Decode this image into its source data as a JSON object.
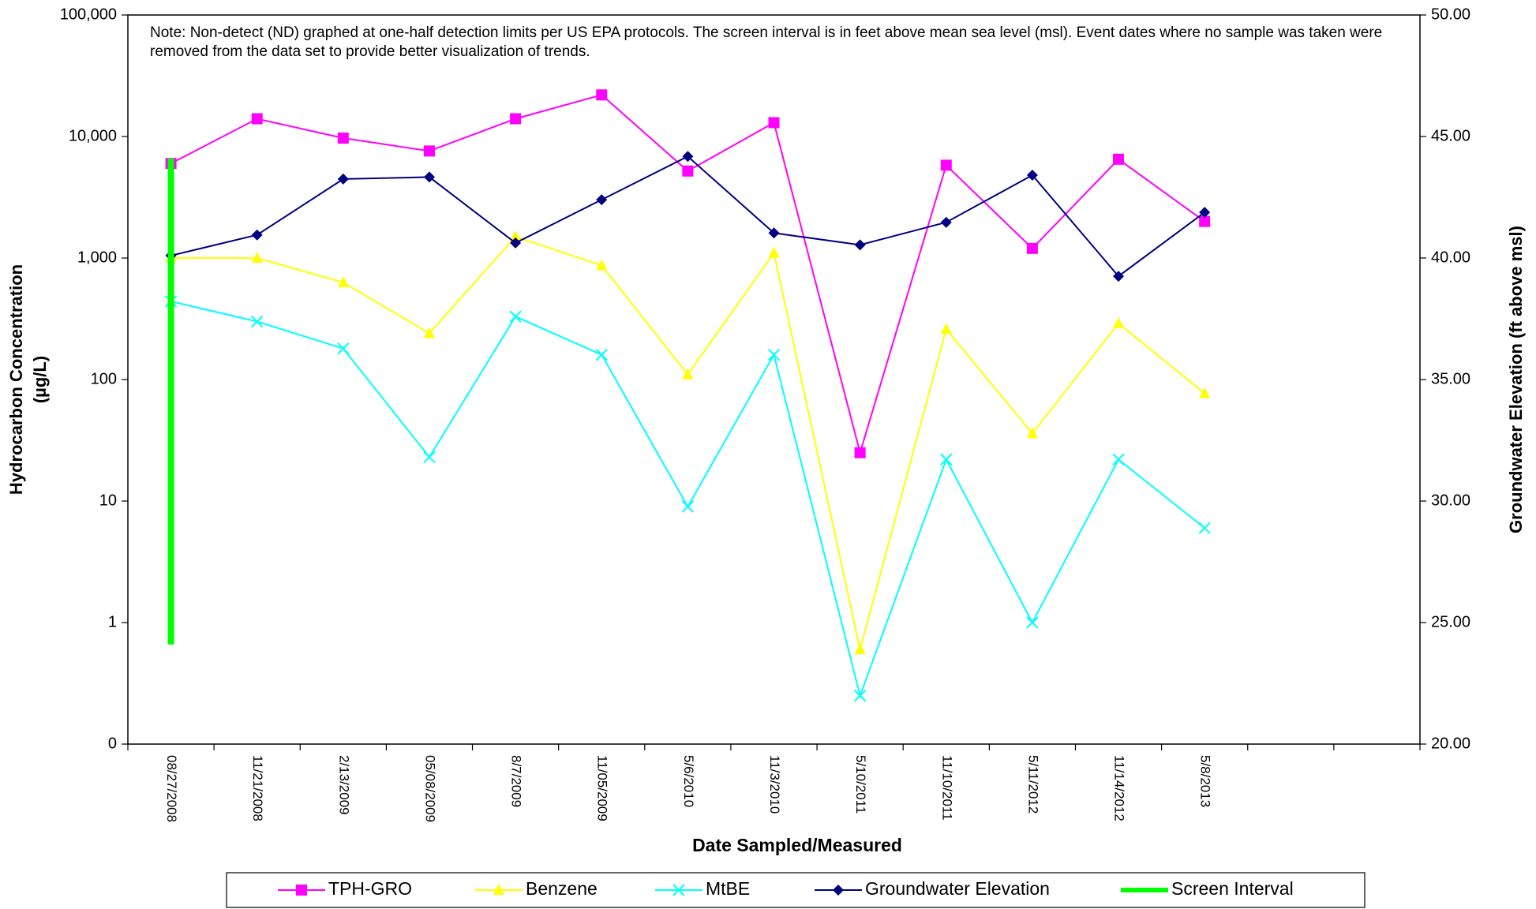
{
  "chart_data": {
    "type": "line",
    "note": "Note: Non-detect (ND) graphed at one-half detection limits per US EPA protocols.  The screen interval is in feet above mean sea level (msl).  Event dates where no sample was taken were removed from the data set to provide better visualization of trends.",
    "x_label": "Date Sampled/Measured",
    "y_label": "Hydrocarbon Concentration (µg/L)",
    "y2_label": "Groundwater Elevation (ft above msl)",
    "log_y": true,
    "categories": [
      "08/27/2008",
      "11/21/2008",
      "2/13/2009",
      "05/08/2009",
      "8/7/2009",
      "11/05/2009",
      "5/6/2010",
      "11/3/2010",
      "5/10/2011",
      "11/10/2011",
      "5/11/2012",
      "11/14/2012",
      "5/8/2013",
      null,
      null
    ],
    "ylim": [
      0.1,
      100000
    ],
    "yticks": [
      {
        "value": 0.1,
        "label": "0"
      },
      1,
      10,
      100,
      {
        "value": 1000,
        "label": "1,000"
      },
      {
        "value": 10000,
        "label": "10,000"
      },
      {
        "value": 100000,
        "label": "100,000"
      }
    ],
    "y2lim": [
      20,
      50
    ],
    "y2ticks": [
      {
        "value": 20,
        "label": "20.00"
      },
      {
        "value": 25,
        "label": "25.00"
      },
      {
        "value": 30,
        "label": "30.00"
      },
      {
        "value": 35,
        "label": "35.00"
      },
      {
        "value": 40,
        "label": "40.00"
      },
      {
        "value": 45,
        "label": "45.00"
      },
      {
        "value": 50,
        "label": "50.00"
      }
    ],
    "series": [
      {
        "name": "TPH-GRO",
        "color": "#ff00ff",
        "marker": "square",
        "values": [
          6000,
          14000,
          9700,
          7600,
          14000,
          22000,
          5200,
          13000,
          25,
          5800,
          1200,
          6500,
          2000,
          null,
          null
        ]
      },
      {
        "name": "Benzene",
        "color": "#ffff00",
        "marker": "triangle",
        "values": [
          1000,
          1000,
          630,
          240,
          1500,
          870,
          110,
          1100,
          0.6,
          260,
          36,
          290,
          77,
          null,
          null
        ]
      },
      {
        "name": "MtBE",
        "color": "#00ffff",
        "marker": "x",
        "values": [
          440,
          300,
          180,
          23,
          330,
          160,
          9,
          160,
          0.25,
          22,
          1,
          22,
          6,
          null,
          null
        ]
      },
      {
        "name": "Groundwater Elevation",
        "color": "#000080",
        "marker": "diamond",
        "axis": "y2",
        "values": [
          40.1,
          40.95,
          43.25,
          43.33,
          40.62,
          42.4,
          44.18,
          41.03,
          40.54,
          41.47,
          43.41,
          39.25,
          41.88,
          null,
          null
        ]
      },
      {
        "name": "Screen Interval",
        "color": "#00ff00",
        "marker": "bar",
        "axis": "y2",
        "values": [
          [
            24.1,
            44.1
          ],
          null,
          null,
          null,
          null,
          null,
          null,
          null,
          null,
          null,
          null,
          null,
          null,
          null,
          null
        ]
      }
    ]
  }
}
